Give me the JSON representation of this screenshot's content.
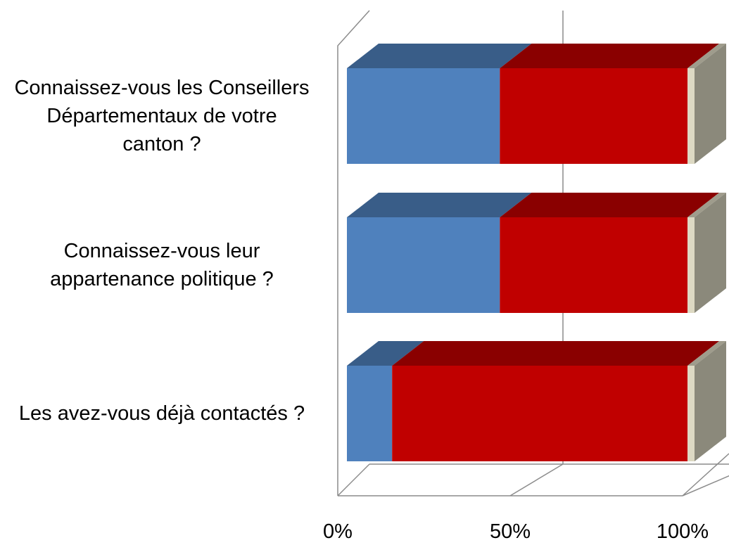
{
  "chart_data": {
    "type": "stacked-bar-3d",
    "categories": [
      "Connaissez-vous les Conseillers Départementaux de votre canton ?",
      "Connaissez-vous leur appartenance politique ?",
      "Les avez-vous déjà contactés ?"
    ],
    "series": [
      {
        "color": "#4f81bd",
        "values": [
          44,
          44,
          13
        ]
      },
      {
        "color": "#c00000",
        "values": [
          54,
          54,
          85
        ]
      },
      {
        "color": "#ddd9c3",
        "values": [
          2,
          2,
          2
        ]
      }
    ],
    "xlim": [
      0,
      100
    ],
    "xticks": [
      {
        "value": 0,
        "label": "0%"
      },
      {
        "value": 50,
        "label": "50%"
      },
      {
        "value": 100,
        "label": "100%"
      }
    ],
    "grid": true
  }
}
